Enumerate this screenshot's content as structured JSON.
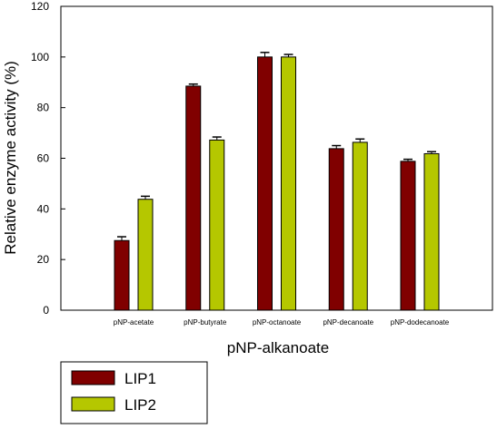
{
  "chart_data": {
    "type": "bar",
    "title": "",
    "xlabel": "pNP-alkanoate",
    "ylabel": "Relative enzyme activity (%)",
    "ylim": [
      0,
      120
    ],
    "yticks": [
      0,
      20,
      40,
      60,
      80,
      100,
      120
    ],
    "categories": [
      "pNP-acetate",
      "pNP-butyrate",
      "pNP-octanoate",
      "pNP-decanoate",
      "pNP-dodecanoate"
    ],
    "series": [
      {
        "name": "LIP1",
        "color": "#800000",
        "values": [
          27.5,
          88.5,
          100,
          63.8,
          58.8
        ],
        "errors": [
          1.5,
          0.8,
          1.8,
          1.2,
          0.8
        ]
      },
      {
        "name": "LIP2",
        "color": "#b5c700",
        "values": [
          43.8,
          67.2,
          100,
          66.3,
          61.8
        ],
        "errors": [
          1.2,
          1.2,
          1.0,
          1.3,
          0.8
        ]
      }
    ],
    "grid": false,
    "legend_position": "bottom-left"
  }
}
